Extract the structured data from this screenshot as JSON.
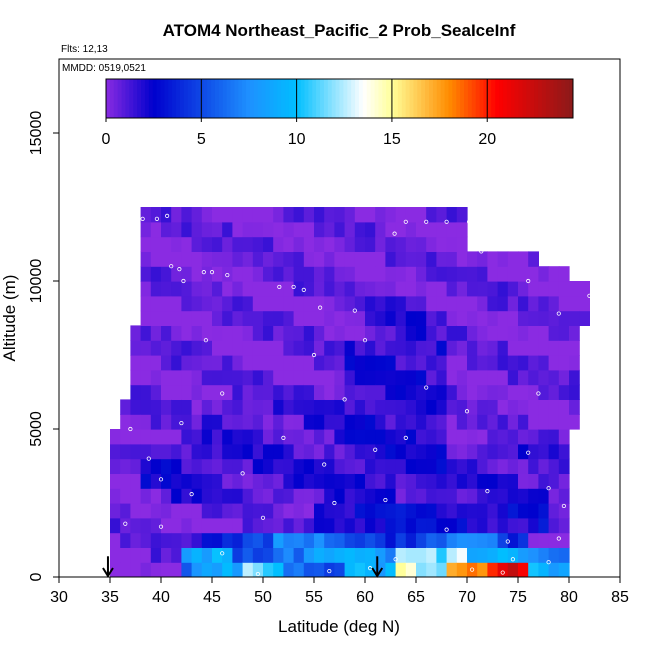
{
  "chart_data": {
    "type": "heatmap",
    "title": "ATOM4 Northeast_Pacific_2 Prob_SeaIceInf",
    "flights_label": "Flts: 12,13",
    "dates_label": "MMDD: 0519,0521",
    "xlabel": "Latitude (deg N)",
    "ylabel": "Altitude (m)",
    "xlim": [
      30,
      85
    ],
    "ylim": [
      0,
      17500
    ],
    "x_ticks": [
      30,
      35,
      40,
      45,
      50,
      55,
      60,
      65,
      70,
      75,
      80,
      85
    ],
    "y_ticks": [
      0,
      5000,
      10000,
      15000
    ],
    "colorbar": {
      "range": [
        0,
        24.5
      ],
      "ticks": [
        0,
        5,
        10,
        15,
        20
      ],
      "colors": [
        "#8a2be2",
        "#0000cd",
        "#1e90ff",
        "#00bfff",
        "#ffffff",
        "#ffff99",
        "#ff8c00",
        "#ff0000",
        "#8b1a1a"
      ]
    },
    "coverage_envelope": [
      [
        35.5,
        0
      ],
      [
        35.5,
        5000
      ],
      [
        36.5,
        6000
      ],
      [
        37.0,
        7000
      ],
      [
        37.5,
        8500
      ],
      [
        37.8,
        10000
      ],
      [
        38.5,
        11000
      ],
      [
        38.5,
        12500
      ],
      [
        70,
        12500
      ],
      [
        70,
        11000
      ],
      [
        75,
        11000
      ],
      [
        79,
        10500
      ],
      [
        82,
        10000
      ],
      [
        82,
        9000
      ],
      [
        81,
        8000
      ],
      [
        80.5,
        5000
      ],
      [
        80,
        2000
      ],
      [
        80,
        0
      ]
    ],
    "grid_x_step": 1,
    "grid_y_step": 500,
    "background_value": 1.0,
    "enhanced_regions": [
      {
        "x": [
          42,
          80
        ],
        "y": [
          0,
          1000
        ],
        "value": 9.0
      },
      {
        "x": [
          48,
          52
        ],
        "y": [
          0,
          600
        ],
        "value": 13.0
      },
      {
        "x": [
          63,
          70
        ],
        "y": [
          0,
          1000
        ],
        "value": 14.5
      },
      {
        "x": [
          68,
          76
        ],
        "y": [
          0,
          500
        ],
        "value": 20.5
      },
      {
        "x": [
          72,
          75
        ],
        "y": [
          0,
          400
        ],
        "value": 22.5
      },
      {
        "x": [
          44,
          76
        ],
        "y": [
          1000,
          1700
        ],
        "value": 7.0
      },
      {
        "x": [
          55,
          78
        ],
        "y": [
          1700,
          2500
        ],
        "value": 3.0
      },
      {
        "x": [
          40,
          80
        ],
        "y": [
          2500,
          4500
        ],
        "value": 2.0
      },
      {
        "x": [
          58,
          68
        ],
        "y": [
          3000,
          8000
        ],
        "value": 2.5
      },
      {
        "x": [
          60,
          66
        ],
        "y": [
          8000,
          9500
        ],
        "value": 2.0
      },
      {
        "x": [
          44,
          58
        ],
        "y": [
          4000,
          6000
        ],
        "value": 1.8
      },
      {
        "x": [
          38,
          46
        ],
        "y": [
          3000,
          4500
        ],
        "value": 2.4
      }
    ],
    "sample_points": [
      [
        38.2,
        12100
      ],
      [
        39.6,
        12100
      ],
      [
        40.6,
        12200
      ],
      [
        41.0,
        10500
      ],
      [
        41.8,
        10400
      ],
      [
        42.2,
        10000
      ],
      [
        44.2,
        10300
      ],
      [
        45.0,
        10300
      ],
      [
        46.5,
        10200
      ],
      [
        51.6,
        9800
      ],
      [
        53.0,
        9800
      ],
      [
        54.0,
        9700
      ],
      [
        55.6,
        9100
      ],
      [
        59.0,
        9000
      ],
      [
        62.9,
        11600
      ],
      [
        64.0,
        12000
      ],
      [
        66.0,
        12000
      ],
      [
        68.0,
        12000
      ],
      [
        70.2,
        12000
      ],
      [
        71.4,
        11000
      ],
      [
        76.0,
        10000
      ],
      [
        79.0,
        8900
      ],
      [
        82.0,
        9500
      ],
      [
        37.0,
        5000
      ],
      [
        38.8,
        4000
      ],
      [
        40.0,
        3300
      ],
      [
        42.0,
        5200
      ],
      [
        43.0,
        2800
      ],
      [
        44.4,
        8000
      ],
      [
        46.0,
        6200
      ],
      [
        48.0,
        3500
      ],
      [
        50.0,
        2000
      ],
      [
        52.0,
        4700
      ],
      [
        55.0,
        7500
      ],
      [
        56.0,
        3800
      ],
      [
        57.0,
        2500
      ],
      [
        58.0,
        6000
      ],
      [
        60.0,
        8000
      ],
      [
        61.0,
        4300
      ],
      [
        62.0,
        2600
      ],
      [
        64.0,
        4700
      ],
      [
        66.0,
        6400
      ],
      [
        68.0,
        1600
      ],
      [
        70.0,
        5600
      ],
      [
        72.0,
        2900
      ],
      [
        74.0,
        1200
      ],
      [
        76.0,
        4200
      ],
      [
        77.0,
        6200
      ],
      [
        78.0,
        3000
      ],
      [
        79.5,
        2400
      ],
      [
        36.5,
        1800
      ],
      [
        40.0,
        1700
      ],
      [
        46.0,
        800
      ],
      [
        49.5,
        100
      ],
      [
        56.5,
        200
      ],
      [
        60.5,
        300
      ],
      [
        63.0,
        600
      ],
      [
        70.5,
        250
      ],
      [
        73.5,
        150
      ],
      [
        74.5,
        600
      ],
      [
        78.0,
        500
      ],
      [
        79.0,
        1300
      ]
    ],
    "markers": [
      {
        "type": "arrow-down",
        "x": 34.8,
        "y_top": 700
      },
      {
        "type": "arrow-down",
        "x": 61.2,
        "y_top": 700
      }
    ]
  }
}
